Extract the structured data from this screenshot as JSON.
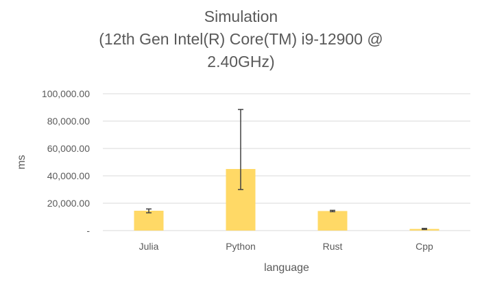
{
  "chart_data": {
    "type": "bar",
    "title": "Simulation",
    "subtitle_lines": [
      "(12th Gen Intel(R) Core(TM) i9-12900 @",
      "2.40GHz)"
    ],
    "xlabel": "language",
    "ylabel": "ms",
    "categories": [
      "Julia",
      "Python",
      "Rust",
      "Cpp"
    ],
    "series": [
      {
        "values": [
          14500,
          45000,
          14300,
          1200
        ],
        "error_low": [
          13000,
          30000,
          13800,
          800
        ],
        "error_high": [
          15800,
          88500,
          14800,
          1600
        ]
      }
    ],
    "ylim": [
      0,
      100000
    ],
    "yticks": [
      0,
      20000,
      40000,
      60000,
      80000,
      100000
    ],
    "ytick_labels": [
      "-",
      "20,000.00",
      "40,000.00",
      "60,000.00",
      "80,000.00",
      "100,000.00"
    ],
    "grid": true,
    "legend": "none",
    "bar_color": "#FFD966",
    "error_color": "#404040",
    "grid_color": "#D9D9D9"
  }
}
